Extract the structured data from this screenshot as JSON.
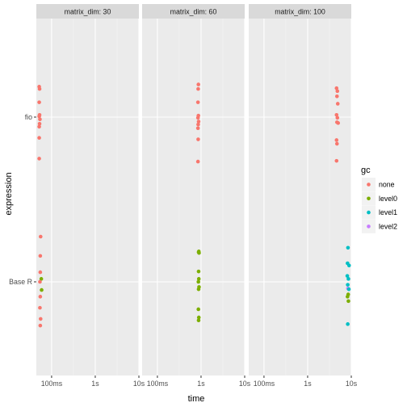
{
  "chart_data": {
    "type": "scatter",
    "x_label": "time",
    "y_label": "expression",
    "x_scale": "log10",
    "x_ticks": [
      {
        "value": 0.1,
        "label": "100ms"
      },
      {
        "value": 1,
        "label": "1s"
      },
      {
        "value": 10,
        "label": "10s"
      }
    ],
    "y_categories": [
      "fio",
      "Base R"
    ],
    "legend": {
      "title": "gc",
      "position": "right",
      "items": [
        {
          "name": "none",
          "color": "#F8766D"
        },
        {
          "name": "level0",
          "color": "#7CAE00"
        },
        {
          "name": "level1",
          "color": "#00BFC4"
        },
        {
          "name": "level2",
          "color": "#C77CFF"
        }
      ]
    },
    "facets": [
      {
        "label": "matrix_dim: 30",
        "points": [
          {
            "expression": "fio",
            "time": 0.052,
            "jitter": 0.41,
            "gc": "none"
          },
          {
            "expression": "fio",
            "time": 0.053,
            "jitter": 0.38,
            "gc": "none"
          },
          {
            "expression": "fio",
            "time": 0.052,
            "jitter": 0.2,
            "gc": "none"
          },
          {
            "expression": "fio",
            "time": 0.053,
            "jitter": 0.03,
            "gc": "none"
          },
          {
            "expression": "fio",
            "time": 0.052,
            "jitter": 0.01,
            "gc": "none"
          },
          {
            "expression": "fio",
            "time": 0.054,
            "jitter": -0.03,
            "gc": "none"
          },
          {
            "expression": "fio",
            "time": 0.053,
            "jitter": -0.09,
            "gc": "none"
          },
          {
            "expression": "fio",
            "time": 0.052,
            "jitter": -0.13,
            "gc": "none"
          },
          {
            "expression": "fio",
            "time": 0.052,
            "jitter": -0.28,
            "gc": "none"
          },
          {
            "expression": "fio",
            "time": 0.052,
            "jitter": -0.56,
            "gc": "none"
          },
          {
            "expression": "Base R",
            "time": 0.056,
            "jitter": 0.61,
            "gc": "none"
          },
          {
            "expression": "Base R",
            "time": 0.055,
            "jitter": 0.35,
            "gc": "none"
          },
          {
            "expression": "Base R",
            "time": 0.055,
            "jitter": 0.13,
            "gc": "none"
          },
          {
            "expression": "Base R",
            "time": 0.058,
            "jitter": 0.04,
            "gc": "level0"
          },
          {
            "expression": "Base R",
            "time": 0.054,
            "jitter": 0.0,
            "gc": "none"
          },
          {
            "expression": "Base R",
            "time": 0.059,
            "jitter": -0.11,
            "gc": "level0"
          },
          {
            "expression": "Base R",
            "time": 0.055,
            "jitter": -0.2,
            "gc": "none"
          },
          {
            "expression": "Base R",
            "time": 0.054,
            "jitter": -0.35,
            "gc": "none"
          },
          {
            "expression": "Base R",
            "time": 0.056,
            "jitter": -0.5,
            "gc": "none"
          },
          {
            "expression": "Base R",
            "time": 0.055,
            "jitter": -0.59,
            "gc": "none"
          }
        ]
      },
      {
        "label": "matrix_dim: 60",
        "points": [
          {
            "expression": "fio",
            "time": 0.87,
            "jitter": 0.44,
            "gc": "none"
          },
          {
            "expression": "fio",
            "time": 0.86,
            "jitter": 0.38,
            "gc": "none"
          },
          {
            "expression": "fio",
            "time": 0.85,
            "jitter": 0.2,
            "gc": "none"
          },
          {
            "expression": "fio",
            "time": 0.87,
            "jitter": 0.02,
            "gc": "none"
          },
          {
            "expression": "fio",
            "time": 0.85,
            "jitter": -0.01,
            "gc": "none"
          },
          {
            "expression": "fio",
            "time": 0.88,
            "jitter": -0.06,
            "gc": "none"
          },
          {
            "expression": "fio",
            "time": 0.86,
            "jitter": -0.1,
            "gc": "none"
          },
          {
            "expression": "fio",
            "time": 0.85,
            "jitter": -0.15,
            "gc": "none"
          },
          {
            "expression": "fio",
            "time": 0.86,
            "jitter": -0.3,
            "gc": "none"
          },
          {
            "expression": "fio",
            "time": 0.85,
            "jitter": -0.6,
            "gc": "none"
          },
          {
            "expression": "Base R",
            "time": 0.89,
            "jitter": 0.41,
            "gc": "level0"
          },
          {
            "expression": "Base R",
            "time": 0.88,
            "jitter": 0.4,
            "gc": "level0"
          },
          {
            "expression": "Base R",
            "time": 0.9,
            "jitter": 0.39,
            "gc": "level0"
          },
          {
            "expression": "Base R",
            "time": 0.88,
            "jitter": 0.14,
            "gc": "level0"
          },
          {
            "expression": "Base R",
            "time": 0.89,
            "jitter": 0.04,
            "gc": "level0"
          },
          {
            "expression": "Base R",
            "time": 0.87,
            "jitter": 0.0,
            "gc": "level0"
          },
          {
            "expression": "Base R",
            "time": 0.9,
            "jitter": -0.07,
            "gc": "level0"
          },
          {
            "expression": "Base R",
            "time": 0.88,
            "jitter": -0.1,
            "gc": "level0"
          },
          {
            "expression": "Base R",
            "time": 0.87,
            "jitter": -0.37,
            "gc": "level0"
          },
          {
            "expression": "Base R",
            "time": 0.89,
            "jitter": -0.48,
            "gc": "level0"
          },
          {
            "expression": "Base R",
            "time": 0.88,
            "jitter": -0.52,
            "gc": "level0"
          }
        ]
      },
      {
        "label": "matrix_dim: 100",
        "points": [
          {
            "expression": "fio",
            "time": 4.6,
            "jitter": 0.39,
            "gc": "none"
          },
          {
            "expression": "fio",
            "time": 4.8,
            "jitter": 0.35,
            "gc": "none"
          },
          {
            "expression": "fio",
            "time": 4.7,
            "jitter": 0.28,
            "gc": "none"
          },
          {
            "expression": "fio",
            "time": 4.9,
            "jitter": 0.18,
            "gc": "none"
          },
          {
            "expression": "fio",
            "time": 4.6,
            "jitter": 0.03,
            "gc": "none"
          },
          {
            "expression": "fio",
            "time": 4.8,
            "jitter": -0.01,
            "gc": "none"
          },
          {
            "expression": "fio",
            "time": 4.7,
            "jitter": -0.07,
            "gc": "none"
          },
          {
            "expression": "fio",
            "time": 5.0,
            "jitter": -0.08,
            "gc": "none"
          },
          {
            "expression": "fio",
            "time": 4.6,
            "jitter": -0.31,
            "gc": "none"
          },
          {
            "expression": "fio",
            "time": 4.7,
            "jitter": -0.36,
            "gc": "none"
          },
          {
            "expression": "fio",
            "time": 4.6,
            "jitter": -0.59,
            "gc": "none"
          },
          {
            "expression": "Base R",
            "time": 8.4,
            "jitter": 0.46,
            "gc": "level1"
          },
          {
            "expression": "Base R",
            "time": 8.2,
            "jitter": 0.25,
            "gc": "level1"
          },
          {
            "expression": "Base R",
            "time": 8.9,
            "jitter": 0.22,
            "gc": "level1"
          },
          {
            "expression": "Base R",
            "time": 8.1,
            "jitter": 0.08,
            "gc": "level1"
          },
          {
            "expression": "Base R",
            "time": 8.6,
            "jitter": 0.04,
            "gc": "level1"
          },
          {
            "expression": "Base R",
            "time": 8.3,
            "jitter": -0.04,
            "gc": "level1"
          },
          {
            "expression": "Base R",
            "time": 8.4,
            "jitter": -0.09,
            "gc": "level2"
          },
          {
            "expression": "Base R",
            "time": 8.8,
            "jitter": -0.1,
            "gc": "level1"
          },
          {
            "expression": "Base R",
            "time": 8.5,
            "jitter": -0.17,
            "gc": "level0"
          },
          {
            "expression": "Base R",
            "time": 8.2,
            "jitter": -0.2,
            "gc": "level0"
          },
          {
            "expression": "Base R",
            "time": 8.6,
            "jitter": -0.26,
            "gc": "level0"
          },
          {
            "expression": "Base R",
            "time": 8.3,
            "jitter": -0.57,
            "gc": "level1"
          }
        ]
      }
    ]
  }
}
